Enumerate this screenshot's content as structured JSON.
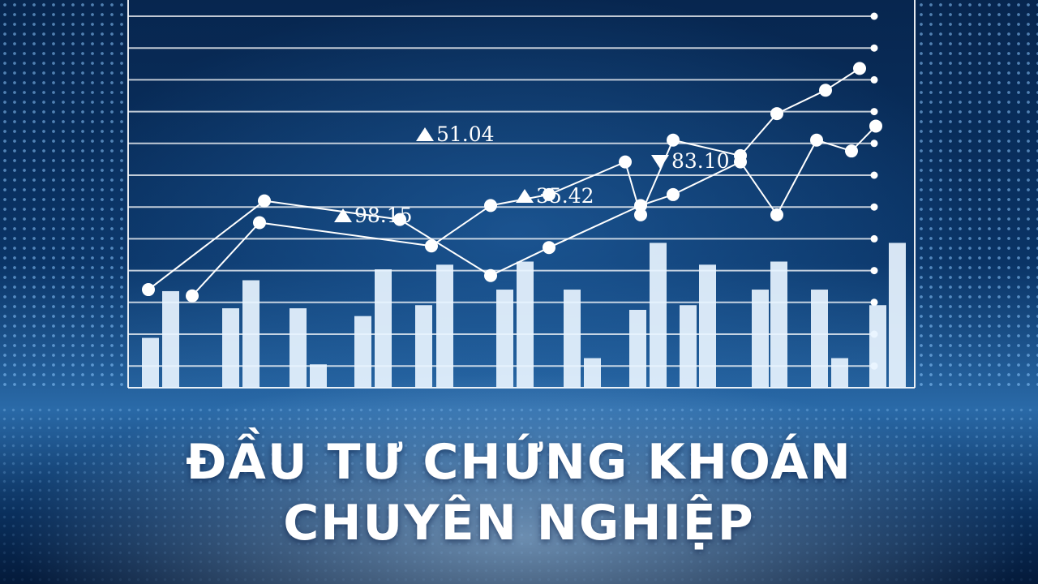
{
  "headline": {
    "line1": "ĐẦU TƯ CHỨNG KHOÁN",
    "line2": "CHUYÊN NGHIỆP"
  },
  "colors": {
    "background": "#0a3466",
    "bars": "#e8f4ff",
    "lines": "#ffffff",
    "grid": "#ffffff",
    "text": "#ffffff"
  },
  "chart_data": {
    "type": "bar",
    "grid": true,
    "bars": [
      32,
      62,
      51,
      69,
      51,
      15,
      46,
      76,
      53,
      79,
      63,
      81,
      63,
      19,
      50,
      93,
      53,
      79,
      63,
      81,
      63,
      19,
      53,
      93
    ],
    "series": [
      {
        "values": [
          63,
          120,
          108,
          72,
          90,
          117,
          124,
          145,
          111,
          159,
          152,
          168
        ]
      },
      {
        "values": [
          59,
          106,
          91,
          117,
          124,
          145,
          111,
          159,
          149,
          176,
          191,
          205
        ]
      }
    ],
    "annotations": [
      {
        "direction": "up",
        "text": "98.15"
      },
      {
        "direction": "up",
        "text": "51.04"
      },
      {
        "direction": "up",
        "text": "35.42"
      },
      {
        "direction": "down",
        "text": "83.10"
      }
    ]
  }
}
